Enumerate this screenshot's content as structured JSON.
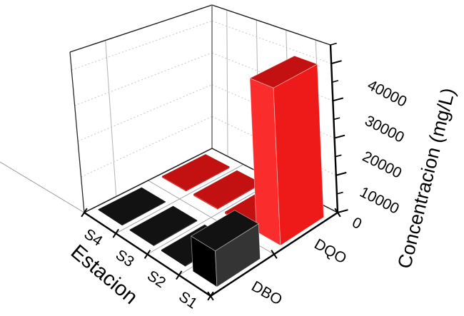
{
  "chart_data": {
    "type": "bar",
    "subtype": "3d-column",
    "title": "",
    "x_axis": {
      "label": "Estacion",
      "categories": [
        "S4",
        "S3",
        "S2",
        "S1"
      ]
    },
    "series_axis": {
      "categories": [
        "DBO",
        "DQO"
      ]
    },
    "z_axis": {
      "label": "Concentracion (mg/L)",
      "min": 0,
      "max": 45000,
      "major_tick_step": 10000,
      "minor_tick_step": 5000,
      "tick_labels": [
        "0",
        "10000",
        "20000",
        "30000",
        "40000"
      ]
    },
    "series": [
      {
        "name": "DBO",
        "color_left": "#000000",
        "color_right": "#343434",
        "color_top": "#121212",
        "values": [
          150,
          200,
          250,
          9000
        ]
      },
      {
        "name": "DQO",
        "color_left": "#fb2c2c",
        "color_right": "#ee1a1a",
        "color_top": "#c31111",
        "values": [
          400,
          450,
          500,
          41000
        ]
      }
    ],
    "grid": {
      "wall_major_lines": "dotted",
      "floor_lines": "solid",
      "legend": "none",
      "background": "#ffffff"
    }
  }
}
